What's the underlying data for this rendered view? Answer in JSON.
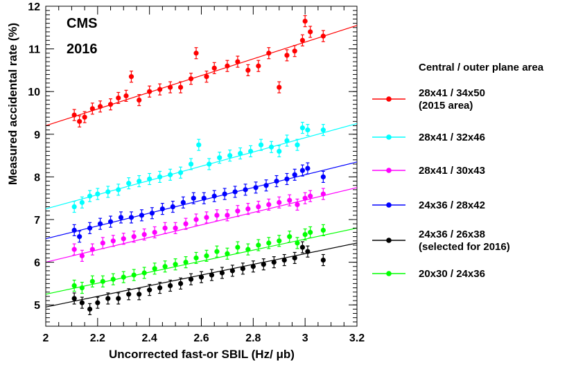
{
  "chart_data": {
    "type": "scatter",
    "xlabel": "Uncorrected fast-or SBIL (Hz/ μb)",
    "ylabel": "Measured accidental rate (%)",
    "xlim": [
      2.0,
      3.2
    ],
    "ylim": [
      4.5,
      12.0
    ],
    "xticks": [
      "2",
      "2.2",
      "2.4",
      "2.6",
      "2.8",
      "3",
      "3.2"
    ],
    "yticks": [
      "5",
      "6",
      "7",
      "8",
      "9",
      "10",
      "11",
      "12"
    ],
    "annotations": [
      "CMS",
      "2016"
    ],
    "legend_title": "Central / outer plane area",
    "legend_position": "right",
    "grid": false,
    "series": [
      {
        "name": "28x41 / 34x50",
        "name2": "(2015 area)",
        "color": "#ff0000",
        "fit": {
          "x": [
            2.0,
            3.2
          ],
          "y": [
            9.2,
            11.55
          ]
        },
        "points": [
          [
            2.11,
            9.45
          ],
          [
            2.13,
            9.3
          ],
          [
            2.15,
            9.4
          ],
          [
            2.18,
            9.6
          ],
          [
            2.21,
            9.65
          ],
          [
            2.25,
            9.7
          ],
          [
            2.28,
            9.85
          ],
          [
            2.31,
            9.9
          ],
          [
            2.33,
            10.35
          ],
          [
            2.36,
            9.8
          ],
          [
            2.4,
            10.0
          ],
          [
            2.44,
            10.05
          ],
          [
            2.48,
            10.1
          ],
          [
            2.52,
            10.1
          ],
          [
            2.56,
            10.3
          ],
          [
            2.58,
            10.9
          ],
          [
            2.62,
            10.35
          ],
          [
            2.65,
            10.55
          ],
          [
            2.7,
            10.6
          ],
          [
            2.74,
            10.7
          ],
          [
            2.78,
            10.5
          ],
          [
            2.82,
            10.6
          ],
          [
            2.86,
            10.9
          ],
          [
            2.9,
            10.1
          ],
          [
            2.93,
            10.85
          ],
          [
            2.96,
            10.95
          ],
          [
            2.99,
            11.2
          ],
          [
            3.0,
            11.65
          ],
          [
            3.02,
            11.4
          ],
          [
            3.07,
            11.3
          ]
        ]
      },
      {
        "name": "28x41 / 32x46",
        "color": "#00ffff",
        "fit": {
          "x": [
            2.0,
            3.2
          ],
          "y": [
            7.25,
            9.25
          ]
        },
        "points": [
          [
            2.11,
            7.3
          ],
          [
            2.14,
            7.4
          ],
          [
            2.17,
            7.55
          ],
          [
            2.2,
            7.6
          ],
          [
            2.24,
            7.65
          ],
          [
            2.28,
            7.7
          ],
          [
            2.32,
            7.85
          ],
          [
            2.36,
            7.9
          ],
          [
            2.4,
            7.95
          ],
          [
            2.44,
            8.0
          ],
          [
            2.48,
            8.05
          ],
          [
            2.52,
            8.1
          ],
          [
            2.56,
            8.3
          ],
          [
            2.59,
            8.75
          ],
          [
            2.63,
            8.3
          ],
          [
            2.67,
            8.45
          ],
          [
            2.71,
            8.5
          ],
          [
            2.75,
            8.55
          ],
          [
            2.79,
            8.6
          ],
          [
            2.83,
            8.75
          ],
          [
            2.87,
            8.7
          ],
          [
            2.9,
            8.6
          ],
          [
            2.93,
            8.85
          ],
          [
            2.97,
            8.75
          ],
          [
            2.99,
            9.15
          ],
          [
            3.01,
            9.1
          ],
          [
            3.07,
            9.1
          ]
        ]
      },
      {
        "name": "28x41 / 30x43",
        "color": "#ff00ff",
        "fit": {
          "x": [
            2.0,
            3.2
          ],
          "y": [
            6.0,
            7.75
          ]
        },
        "points": [
          [
            2.11,
            6.3
          ],
          [
            2.14,
            6.15
          ],
          [
            2.18,
            6.3
          ],
          [
            2.22,
            6.45
          ],
          [
            2.26,
            6.5
          ],
          [
            2.3,
            6.55
          ],
          [
            2.34,
            6.6
          ],
          [
            2.38,
            6.65
          ],
          [
            2.42,
            6.7
          ],
          [
            2.46,
            6.8
          ],
          [
            2.5,
            6.8
          ],
          [
            2.54,
            6.9
          ],
          [
            2.58,
            7.0
          ],
          [
            2.62,
            7.05
          ],
          [
            2.66,
            7.1
          ],
          [
            2.7,
            7.1
          ],
          [
            2.74,
            7.2
          ],
          [
            2.78,
            7.25
          ],
          [
            2.82,
            7.3
          ],
          [
            2.86,
            7.35
          ],
          [
            2.9,
            7.4
          ],
          [
            2.94,
            7.45
          ],
          [
            2.97,
            7.35
          ],
          [
            3.0,
            7.5
          ],
          [
            3.02,
            7.55
          ],
          [
            3.07,
            7.6
          ]
        ]
      },
      {
        "name": "24x36 / 28x42",
        "color": "#0000ff",
        "fit": {
          "x": [
            2.0,
            3.2
          ],
          "y": [
            6.55,
            8.35
          ]
        },
        "points": [
          [
            2.11,
            6.75
          ],
          [
            2.13,
            6.6
          ],
          [
            2.17,
            6.8
          ],
          [
            2.21,
            6.9
          ],
          [
            2.25,
            6.95
          ],
          [
            2.29,
            7.05
          ],
          [
            2.33,
            7.05
          ],
          [
            2.37,
            7.1
          ],
          [
            2.41,
            7.15
          ],
          [
            2.45,
            7.25
          ],
          [
            2.49,
            7.3
          ],
          [
            2.53,
            7.4
          ],
          [
            2.57,
            7.5
          ],
          [
            2.61,
            7.5
          ],
          [
            2.65,
            7.55
          ],
          [
            2.69,
            7.6
          ],
          [
            2.73,
            7.65
          ],
          [
            2.77,
            7.7
          ],
          [
            2.81,
            7.75
          ],
          [
            2.85,
            7.8
          ],
          [
            2.89,
            7.9
          ],
          [
            2.93,
            7.95
          ],
          [
            2.96,
            8.05
          ],
          [
            2.99,
            8.15
          ],
          [
            3.01,
            8.2
          ],
          [
            3.07,
            8.0
          ]
        ]
      },
      {
        "name": "24x36 / 26x38",
        "name2": "(selected for 2016)",
        "color": "#000000",
        "fit": {
          "x": [
            2.0,
            3.2
          ],
          "y": [
            4.95,
            6.45
          ]
        },
        "points": [
          [
            2.11,
            5.15
          ],
          [
            2.14,
            5.05
          ],
          [
            2.17,
            4.9
          ],
          [
            2.2,
            5.05
          ],
          [
            2.24,
            5.15
          ],
          [
            2.28,
            5.15
          ],
          [
            2.32,
            5.25
          ],
          [
            2.36,
            5.25
          ],
          [
            2.4,
            5.35
          ],
          [
            2.44,
            5.4
          ],
          [
            2.48,
            5.45
          ],
          [
            2.52,
            5.5
          ],
          [
            2.56,
            5.6
          ],
          [
            2.6,
            5.65
          ],
          [
            2.64,
            5.7
          ],
          [
            2.68,
            5.75
          ],
          [
            2.72,
            5.8
          ],
          [
            2.76,
            5.85
          ],
          [
            2.8,
            5.9
          ],
          [
            2.84,
            5.95
          ],
          [
            2.88,
            6.0
          ],
          [
            2.92,
            6.05
          ],
          [
            2.96,
            6.1
          ],
          [
            2.99,
            6.35
          ],
          [
            3.01,
            6.25
          ],
          [
            3.07,
            6.05
          ]
        ]
      },
      {
        "name": "20x30 / 24x36",
        "color": "#00ff00",
        "fit": {
          "x": [
            2.0,
            3.2
          ],
          "y": [
            5.25,
            6.8
          ]
        },
        "points": [
          [
            2.11,
            5.45
          ],
          [
            2.14,
            5.4
          ],
          [
            2.18,
            5.55
          ],
          [
            2.22,
            5.55
          ],
          [
            2.26,
            5.6
          ],
          [
            2.3,
            5.65
          ],
          [
            2.34,
            5.7
          ],
          [
            2.38,
            5.75
          ],
          [
            2.42,
            5.85
          ],
          [
            2.46,
            5.9
          ],
          [
            2.5,
            5.95
          ],
          [
            2.54,
            6.0
          ],
          [
            2.58,
            6.1
          ],
          [
            2.62,
            6.15
          ],
          [
            2.66,
            6.25
          ],
          [
            2.7,
            6.2
          ],
          [
            2.74,
            6.35
          ],
          [
            2.78,
            6.3
          ],
          [
            2.82,
            6.4
          ],
          [
            2.86,
            6.45
          ],
          [
            2.9,
            6.5
          ],
          [
            2.94,
            6.6
          ],
          [
            2.97,
            6.45
          ],
          [
            3.0,
            6.65
          ],
          [
            3.02,
            6.7
          ],
          [
            3.07,
            6.75
          ]
        ]
      }
    ]
  }
}
